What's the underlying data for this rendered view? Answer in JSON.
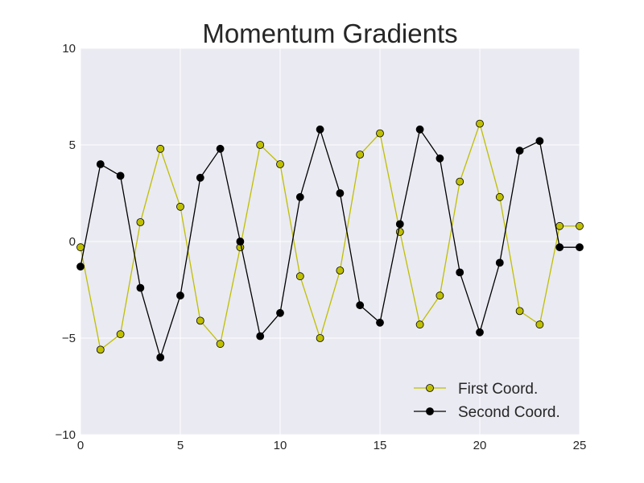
{
  "chart_data": {
    "type": "line",
    "title": "Momentum Gradients",
    "xlabel": "",
    "ylabel": "",
    "xlim": [
      0,
      25
    ],
    "ylim": [
      -10,
      10
    ],
    "xticks": [
      0,
      5,
      10,
      15,
      20,
      25
    ],
    "yticks": [
      -10,
      -5,
      0,
      5,
      10
    ],
    "ytick_labels": [
      "−10",
      "−5",
      "0",
      "5",
      "10"
    ],
    "grid": true,
    "legend_position": "lower-right",
    "background": "#eaeaf2",
    "x": [
      0,
      1,
      2,
      3,
      4,
      5,
      6,
      7,
      8,
      9,
      10,
      11,
      12,
      13,
      14,
      15,
      16,
      17,
      18,
      19,
      20,
      21,
      22,
      23,
      24,
      25
    ],
    "series": [
      {
        "name": "First Coord.",
        "color": "#bfbf00",
        "values": [
          -0.3,
          -5.6,
          -4.8,
          1.0,
          4.8,
          1.8,
          -4.1,
          -5.3,
          -0.3,
          5.0,
          4.0,
          -1.8,
          -5.0,
          -1.5,
          4.5,
          5.6,
          0.5,
          -4.3,
          -2.8,
          3.1,
          6.1,
          2.3,
          -3.6,
          -4.3,
          0.8,
          0.8
        ]
      },
      {
        "name": "Second Coord.",
        "color": "#000000",
        "values": [
          -1.3,
          4.0,
          3.4,
          -2.4,
          -6.0,
          -2.8,
          3.3,
          4.8,
          0.0,
          -4.9,
          -3.7,
          2.3,
          5.8,
          2.5,
          -3.3,
          -4.2,
          0.9,
          5.8,
          4.3,
          -1.6,
          -4.7,
          -1.1,
          4.7,
          5.2,
          -0.3,
          -0.3
        ]
      }
    ]
  }
}
